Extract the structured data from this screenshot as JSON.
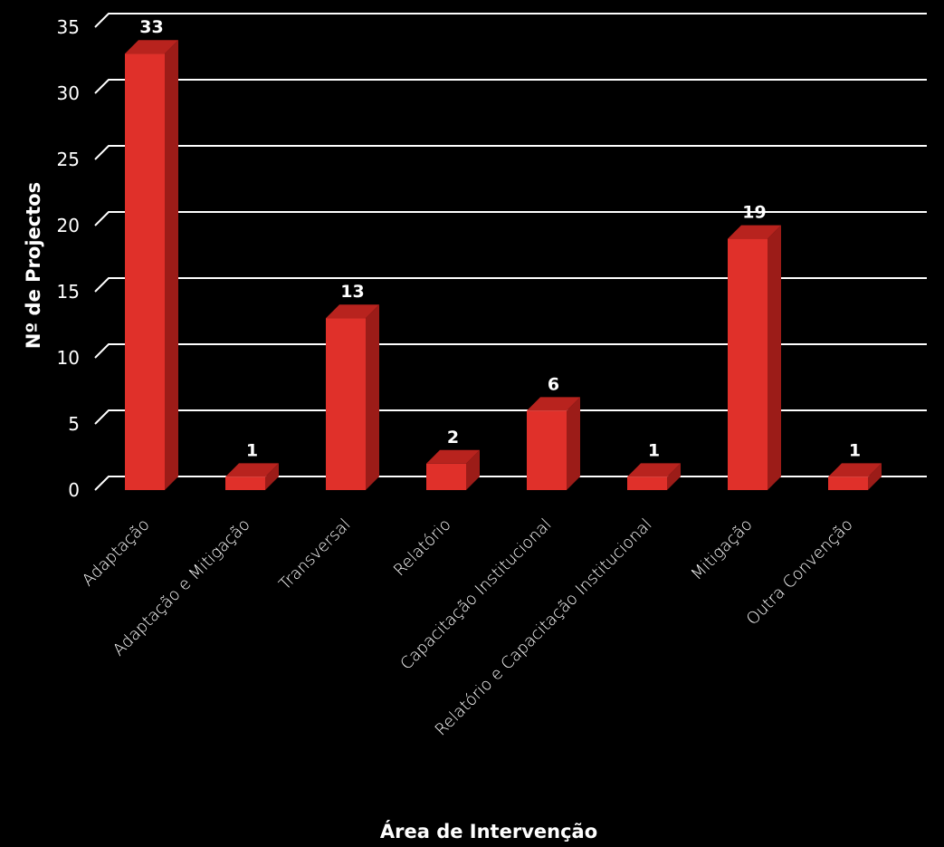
{
  "chart_data": {
    "type": "bar",
    "style": "3d-column",
    "categories": [
      "Adaptação",
      "Adaptação e Mitigação",
      "Transversal",
      "Relatório",
      "Capacitação Institucional",
      "Relatório e Capacitação Institucional",
      "Mitigação",
      "Outra Convenção"
    ],
    "values": [
      33,
      1,
      13,
      2,
      6,
      1,
      19,
      1
    ],
    "data_labels": [
      "33",
      "1",
      "13",
      "2",
      "6",
      "1",
      "19",
      "1"
    ],
    "title": "",
    "xlabel": "Área de Intervenção",
    "ylabel": "Nº de Projectos",
    "ylim": [
      0,
      35
    ],
    "yticks": [
      "0",
      "5",
      "10",
      "15",
      "20",
      "25",
      "30",
      "35"
    ],
    "grid": true,
    "legend": "none",
    "colors": {
      "background": "#000000",
      "bar_front": "#e0302a",
      "bar_side": "#9c1c18",
      "bar_top": "#b8231e",
      "grid": "#ffffff",
      "text": "#ffffff"
    }
  }
}
